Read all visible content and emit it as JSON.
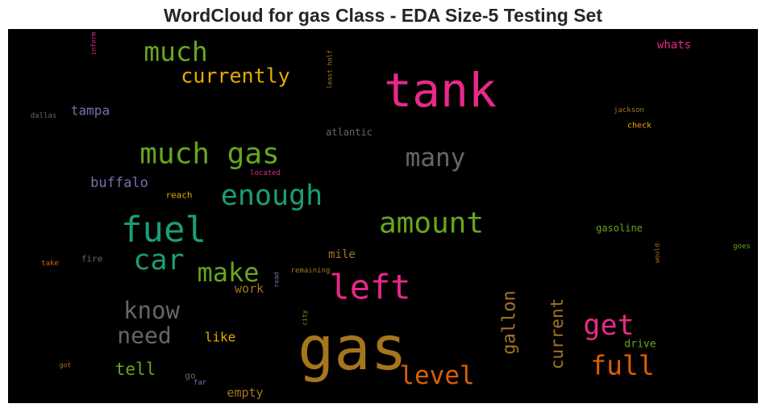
{
  "chart_data": {
    "type": "wordcloud",
    "title": "WordCloud for gas Class - EDA Size-5 Testing Set",
    "background": "#000000",
    "words": [
      {
        "text": "gas",
        "weight": 1.0,
        "color": "#a6761d"
      },
      {
        "text": "tank",
        "weight": 0.78,
        "color": "#e7298a"
      },
      {
        "text": "fuel",
        "weight": 0.6,
        "color": "#1b9e77"
      },
      {
        "text": "left",
        "weight": 0.58,
        "color": "#e7298a"
      },
      {
        "text": "amount",
        "weight": 0.53,
        "color": "#66a61e"
      },
      {
        "text": "much gas",
        "weight": 0.5,
        "color": "#66a61e"
      },
      {
        "text": "enough",
        "weight": 0.49,
        "color": "#1b9e77"
      },
      {
        "text": "get",
        "weight": 0.49,
        "color": "#e7298a"
      },
      {
        "text": "car",
        "weight": 0.49,
        "color": "#1b9e77"
      },
      {
        "text": "much",
        "weight": 0.47,
        "color": "#66a61e"
      },
      {
        "text": "full",
        "weight": 0.46,
        "color": "#d95f02"
      },
      {
        "text": "make",
        "weight": 0.45,
        "color": "#66a61e"
      },
      {
        "text": "level",
        "weight": 0.44,
        "color": "#d95f02"
      },
      {
        "text": "many",
        "weight": 0.44,
        "color": "#666666"
      },
      {
        "text": "know",
        "weight": 0.41,
        "color": "#666666"
      },
      {
        "text": "need",
        "weight": 0.39,
        "color": "#666666"
      },
      {
        "text": "currently",
        "weight": 0.35,
        "color": "#e6ab02"
      },
      {
        "text": "gallon",
        "weight": 0.32,
        "color": "#a6761d"
      },
      {
        "text": "current",
        "weight": 0.3,
        "color": "#a6761d"
      },
      {
        "text": "tell",
        "weight": 0.3,
        "color": "#66a61e"
      },
      {
        "text": "buffalo",
        "weight": 0.24,
        "color": "#7570b3"
      },
      {
        "text": "tampa",
        "weight": 0.23,
        "color": "#7570b3"
      },
      {
        "text": "like",
        "weight": 0.23,
        "color": "#e6ab02"
      },
      {
        "text": "empty",
        "weight": 0.21,
        "color": "#a6761d"
      },
      {
        "text": "work",
        "weight": 0.21,
        "color": "#a6761d"
      },
      {
        "text": "mile",
        "weight": 0.2,
        "color": "#a6761d"
      },
      {
        "text": "whats",
        "weight": 0.19,
        "color": "#e7298a"
      },
      {
        "text": "drive",
        "weight": 0.18,
        "color": "#66a61e"
      },
      {
        "text": "atlantic",
        "weight": 0.17,
        "color": "#666666"
      },
      {
        "text": "gasoline",
        "weight": 0.16,
        "color": "#66a61e"
      },
      {
        "text": "fire",
        "weight": 0.15,
        "color": "#666666"
      },
      {
        "text": "reach",
        "weight": 0.15,
        "color": "#e6ab02"
      },
      {
        "text": "go",
        "weight": 0.14,
        "color": "#666666"
      },
      {
        "text": "check",
        "weight": 0.13,
        "color": "#e6ab02"
      },
      {
        "text": "jackson",
        "weight": 0.12,
        "color": "#a6761d"
      },
      {
        "text": "located",
        "weight": 0.12,
        "color": "#e7298a"
      },
      {
        "text": "remaining",
        "weight": 0.12,
        "color": "#a6761d"
      },
      {
        "text": "goes",
        "weight": 0.12,
        "color": "#66a61e"
      },
      {
        "text": "take",
        "weight": 0.12,
        "color": "#d95f02"
      },
      {
        "text": "dallas",
        "weight": 0.12,
        "color": "#666666"
      },
      {
        "text": "far",
        "weight": 0.12,
        "color": "#7570b3"
      },
      {
        "text": "got",
        "weight": 0.11,
        "color": "#a6761d"
      },
      {
        "text": "read",
        "weight": 0.11,
        "color": "#7570b3"
      },
      {
        "text": "city",
        "weight": 0.11,
        "color": "#66a61e"
      },
      {
        "text": "would",
        "weight": 0.11,
        "color": "#a6761d"
      },
      {
        "text": "inform",
        "weight": 0.11,
        "color": "#e7298a"
      },
      {
        "text": "least half",
        "weight": 0.11,
        "color": "#a6761d"
      }
    ]
  }
}
